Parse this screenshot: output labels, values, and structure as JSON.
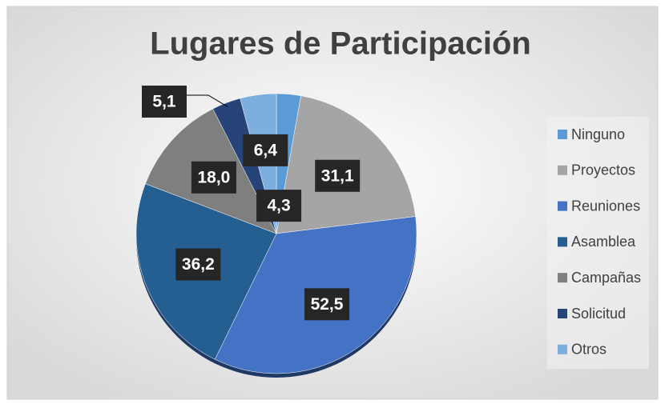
{
  "chart_data": {
    "type": "pie",
    "title": "Lugares de Participación",
    "categories": [
      "Ninguno",
      "Proyectos",
      "Reuniones",
      "Asamblea",
      "Campañas",
      "Solicitud",
      "Otros"
    ],
    "values": [
      4.3,
      31.1,
      52.5,
      36.2,
      18.0,
      5.1,
      6.4
    ],
    "value_labels": [
      "4,3",
      "31,1",
      "52,5",
      "36,2",
      "18,0",
      "5,1",
      "6,4"
    ],
    "colors": [
      "#5b9bd5",
      "#a5a5a5",
      "#4472c4",
      "#255e91",
      "#7f7f7f",
      "#264478",
      "#7cafdd"
    ],
    "legend": "right"
  }
}
